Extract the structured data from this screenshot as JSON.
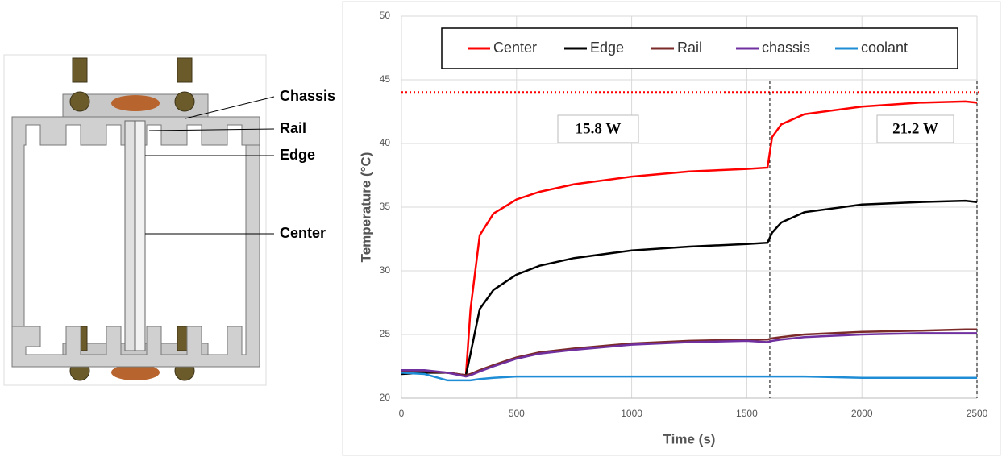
{
  "diagram": {
    "labels": [
      "Chassis",
      "Rail",
      "Edge",
      "Center"
    ]
  },
  "chart_data": {
    "type": "line",
    "xlabel": "Time (s)",
    "ylabel": "Temperature (°C)",
    "x": [
      0,
      100,
      200,
      280,
      300,
      340,
      400,
      500,
      600,
      750,
      1000,
      1250,
      1500,
      1590,
      1610,
      1650,
      1750,
      2000,
      2250,
      2450,
      2500
    ],
    "series": [
      {
        "name": "Center",
        "color": "#ff0000",
        "values": [
          22,
          22.1,
          22,
          21.8,
          27,
          32.8,
          34.5,
          35.6,
          36.2,
          36.8,
          37.4,
          37.8,
          38,
          38.1,
          40.5,
          41.5,
          42.3,
          42.9,
          43.2,
          43.3,
          43.2
        ]
      },
      {
        "name": "Edge",
        "color": "#000000",
        "values": [
          21.9,
          22,
          22,
          21.8,
          23.5,
          27,
          28.5,
          29.7,
          30.4,
          31,
          31.6,
          31.9,
          32.1,
          32.2,
          33,
          33.8,
          34.6,
          35.2,
          35.4,
          35.5,
          35.4
        ]
      },
      {
        "name": "Rail",
        "color": "#7b2a2a",
        "values": [
          22.1,
          22.1,
          22,
          21.8,
          21.9,
          22.2,
          22.6,
          23.2,
          23.6,
          23.9,
          24.3,
          24.5,
          24.6,
          24.6,
          24.7,
          24.8,
          25,
          25.2,
          25.3,
          25.4,
          25.4
        ]
      },
      {
        "name": "chassis",
        "color": "#7030a0",
        "values": [
          22.2,
          22.2,
          22,
          21.7,
          21.8,
          22.1,
          22.5,
          23.1,
          23.5,
          23.8,
          24.2,
          24.4,
          24.5,
          24.4,
          24.5,
          24.6,
          24.8,
          25,
          25.1,
          25.1,
          25.1
        ]
      },
      {
        "name": "coolant",
        "color": "#1f8dd6",
        "values": [
          22,
          21.9,
          21.4,
          21.4,
          21.4,
          21.5,
          21.6,
          21.7,
          21.7,
          21.7,
          21.7,
          21.7,
          21.7,
          21.7,
          21.7,
          21.7,
          21.7,
          21.6,
          21.6,
          21.6,
          21.6
        ]
      }
    ],
    "xlim": [
      0,
      2500
    ],
    "xticks": [
      0,
      500,
      1000,
      1500,
      2000,
      2500
    ],
    "ylim": [
      20,
      50
    ],
    "yticks": [
      20,
      25,
      30,
      35,
      40,
      45,
      50
    ],
    "grid": true,
    "legend": "top",
    "hlines": [
      {
        "value": 44,
        "color": "#ff0000"
      }
    ],
    "vlines": [
      1600,
      2500
    ],
    "annotations": [
      "15.8 W",
      "21.2 W"
    ]
  }
}
